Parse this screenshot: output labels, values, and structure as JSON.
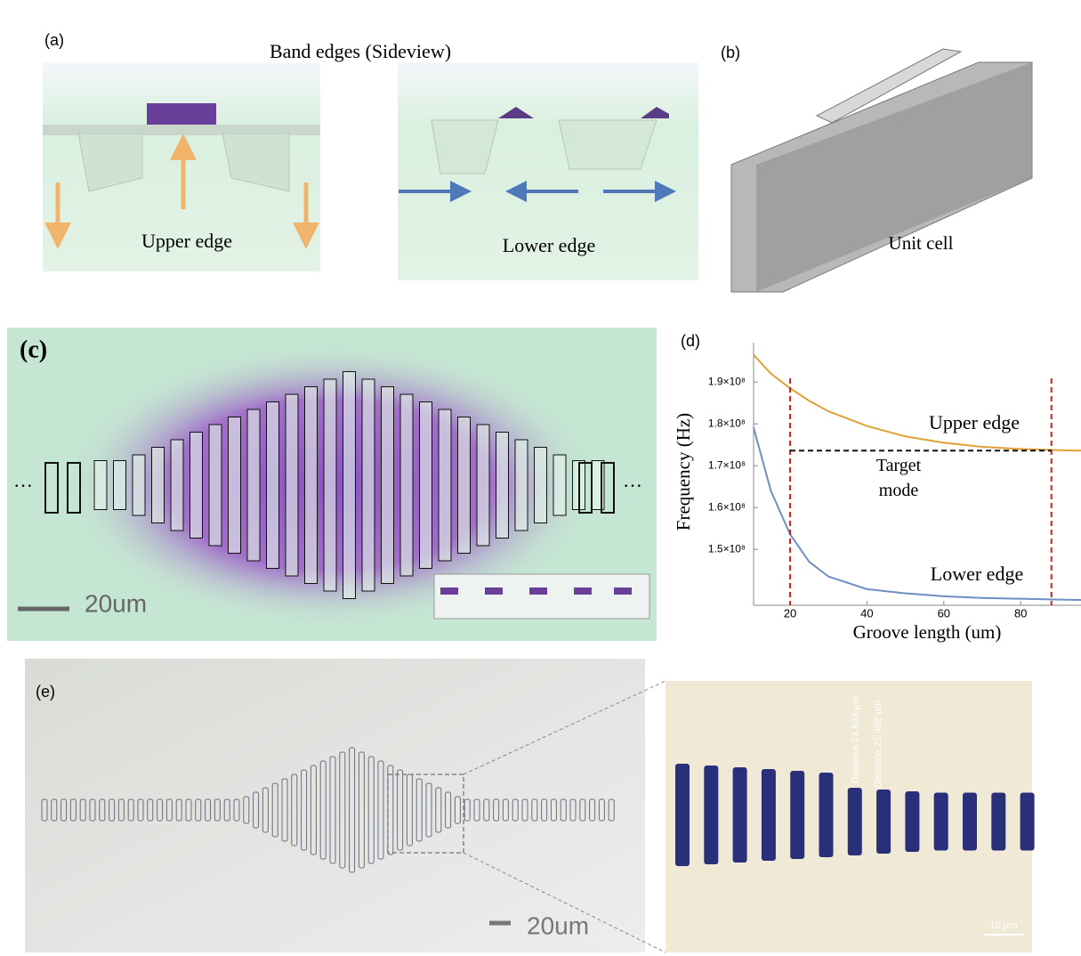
{
  "panels": {
    "a": {
      "label": "(a)",
      "title": "Band edges (Sideview)",
      "left_caption": "Upper edge",
      "right_caption": "Lower edge"
    },
    "b": {
      "label": "(b)",
      "caption": "Unit cell"
    },
    "c": {
      "label": "(c)",
      "scale": "20um",
      "ellipsis": "···"
    },
    "e": {
      "label": "(e)",
      "scale": "20um",
      "zoom_scale": "10 μm",
      "measure_1": "Distance 24.633 μm",
      "measure_2": "Distance 21.492 μm"
    },
    "d": {
      "label": "(d)"
    }
  },
  "chart_data": {
    "type": "line",
    "x_label": "Groove length (um)",
    "y_label": "Frequency (Hz)",
    "x": [
      10.5,
      15,
      20,
      25,
      30,
      40,
      50,
      60,
      70,
      80,
      90,
      95.7
    ],
    "series": [
      {
        "name": "Upper edge",
        "color": "#e0a035",
        "values": [
          196500000,
          192000000,
          188500000,
          185500000,
          183000000,
          179500000,
          177000000,
          175500000,
          174500000,
          174000000,
          173700000,
          173600000
        ]
      },
      {
        "name": "Lower edge",
        "color": "#6f8fc4",
        "values": [
          179100000,
          164000000,
          153600000,
          147000000,
          143500000,
          140500000,
          139500000,
          138800000,
          138400000,
          138200000,
          138000000,
          137900000
        ]
      }
    ],
    "target": {
      "label": [
        "Target",
        "mode"
      ],
      "value": 173600000,
      "x_range": [
        20,
        88
      ]
    },
    "vlines": [
      20,
      88
    ],
    "xlim": [
      10.5,
      95.7
    ],
    "xticks": [
      20,
      40,
      60,
      80
    ],
    "ylim": [
      137700000,
      199400000
    ],
    "yticks": [
      {
        "value": 150000000,
        "label": "1.5×10⁸"
      },
      {
        "value": 160000000,
        "label": "1.6×10⁸"
      },
      {
        "value": 170000000,
        "label": "1.7×10⁸"
      },
      {
        "value": 180000000,
        "label": "1.8×10⁸"
      },
      {
        "value": 190000000,
        "label": "1.9×10⁸"
      }
    ]
  }
}
